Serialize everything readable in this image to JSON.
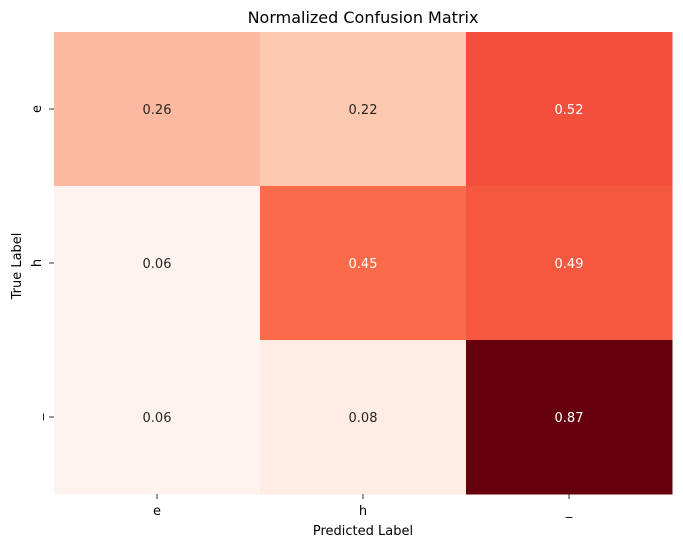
{
  "chart_data": {
    "type": "heatmap",
    "title": "Normalized Confusion Matrix",
    "xlabel": "Predicted Label",
    "ylabel": "True Label",
    "x_categories": [
      "e",
      "h",
      "_"
    ],
    "y_categories": [
      "e",
      "h",
      "_"
    ],
    "values": [
      [
        0.26,
        0.22,
        0.52
      ],
      [
        0.06,
        0.45,
        0.49
      ],
      [
        0.06,
        0.08,
        0.87
      ]
    ],
    "colormap": "Reds",
    "cell_colors": [
      [
        "#fcb99f",
        "#fcc8b0",
        "#f34f3b"
      ],
      [
        "#fff3ef",
        "#fb6a4a",
        "#f5573f"
      ],
      [
        "#fff3ef",
        "#ffece4",
        "#67000d"
      ]
    ],
    "text_colors": [
      [
        "#262626",
        "#262626",
        "#ffffff"
      ],
      [
        "#262626",
        "#ffffff",
        "#ffffff"
      ],
      [
        "#262626",
        "#262626",
        "#ffffff"
      ]
    ],
    "colorbar": false,
    "grid": false
  }
}
